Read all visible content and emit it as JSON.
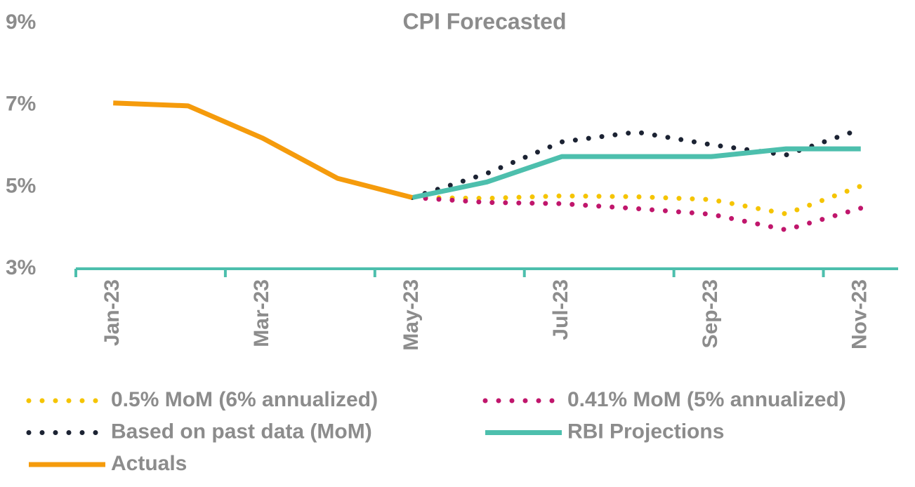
{
  "chart_data": {
    "type": "line",
    "title": "CPI Forecasted",
    "categories": [
      "Jan-23",
      null,
      "Mar-23",
      null,
      "May-23",
      null,
      "Jul-23",
      null,
      "Sep-23",
      null,
      "Nov-23"
    ],
    "ylim": [
      3,
      9
    ],
    "yticks": [
      {
        "value": 3,
        "label": "3%"
      },
      {
        "value": 5,
        "label": "5%"
      },
      {
        "value": 7,
        "label": "7%"
      },
      {
        "value": 9,
        "label": "9%"
      }
    ],
    "series": [
      {
        "name": "0.5% MoM (6% annualized)",
        "color": "#f5c400",
        "style": "dotted",
        "values": [
          null,
          null,
          null,
          null,
          4.74,
          4.72,
          4.78,
          4.76,
          4.69,
          4.34,
          5.02
        ]
      },
      {
        "name": "0.41% MoM (5% annualized)",
        "color": "#c0166c",
        "style": "dotted",
        "values": [
          null,
          null,
          null,
          null,
          4.74,
          4.62,
          4.59,
          4.47,
          4.33,
          3.95,
          4.48
        ]
      },
      {
        "name": "Based on past data (MoM)",
        "color": "#1c2333",
        "style": "dotted",
        "values": [
          null,
          null,
          null,
          null,
          4.74,
          5.33,
          6.1,
          6.34,
          6.03,
          5.78,
          6.41
        ]
      },
      {
        "name": "RBI Projections",
        "color": "#4dbfad",
        "style": "solid",
        "values": [
          null,
          null,
          null,
          null,
          4.74,
          5.12,
          5.74,
          5.74,
          5.74,
          5.93,
          5.93
        ]
      },
      {
        "name": "Actuals",
        "color": "#f59b0c",
        "style": "solid",
        "values": [
          7.05,
          6.98,
          6.19,
          5.21,
          4.74,
          null,
          null,
          null,
          null,
          null,
          null
        ]
      }
    ]
  }
}
